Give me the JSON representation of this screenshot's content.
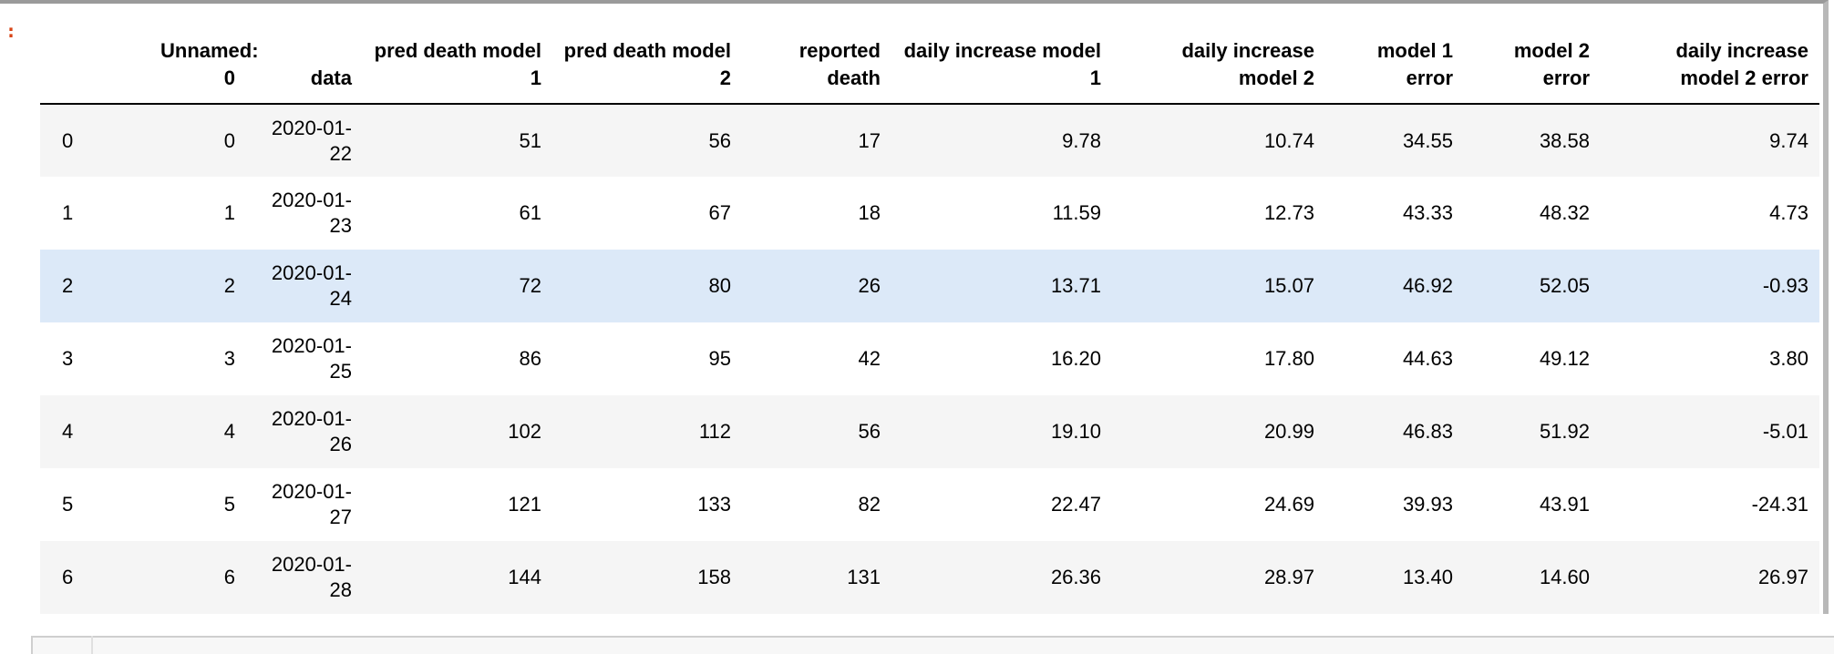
{
  "prompt_marker": ":",
  "table": {
    "columns": [
      "",
      "Unnamed: 0",
      "data",
      "pred death model 1",
      "pred death model 2",
      "reported death",
      "daily increase model 1",
      "daily increase model 2",
      "model 1 error",
      "model 2 error",
      "daily increase model 2 error"
    ],
    "rows": [
      [
        "0",
        "0",
        "2020-01-22",
        "51",
        "56",
        "17",
        "9.78",
        "10.74",
        "34.55",
        "38.58",
        "9.74"
      ],
      [
        "1",
        "1",
        "2020-01-23",
        "61",
        "67",
        "18",
        "11.59",
        "12.73",
        "43.33",
        "48.32",
        "4.73"
      ],
      [
        "2",
        "2",
        "2020-01-24",
        "72",
        "80",
        "26",
        "13.71",
        "15.07",
        "46.92",
        "52.05",
        "-0.93"
      ],
      [
        "3",
        "3",
        "2020-01-25",
        "86",
        "95",
        "42",
        "16.20",
        "17.80",
        "44.63",
        "49.12",
        "3.80"
      ],
      [
        "4",
        "4",
        "2020-01-26",
        "102",
        "112",
        "56",
        "19.10",
        "20.99",
        "46.83",
        "51.92",
        "-5.01"
      ],
      [
        "5",
        "5",
        "2020-01-27",
        "121",
        "133",
        "82",
        "22.47",
        "24.69",
        "39.93",
        "43.91",
        "-24.31"
      ],
      [
        "6",
        "6",
        "2020-01-28",
        "144",
        "158",
        "131",
        "26.36",
        "28.97",
        "13.40",
        "14.60",
        "26.97"
      ]
    ],
    "hovered_row": 2
  },
  "colors": {
    "prompt": "#d84315",
    "row_stripe": "#f5f5f5",
    "row_hover": "#dce9f8"
  }
}
